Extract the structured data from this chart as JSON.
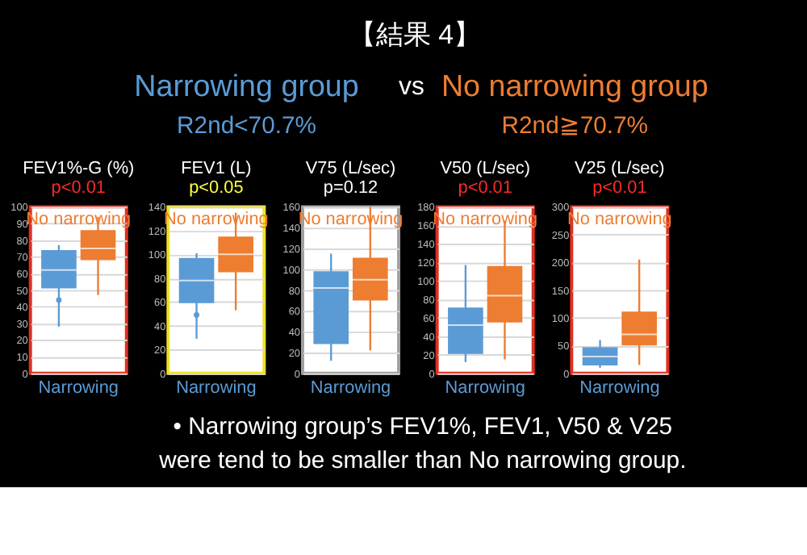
{
  "chart_data": [
    {
      "type": "other",
      "title": "【結果 4】",
      "annotations": [
        "Narrowing group",
        "vs",
        "No narrowing group",
        "R2nd<70.7%",
        "R2nd≧70.7%"
      ],
      "colors": [
        "#5b9bd5",
        "#ffffff",
        "#ed7d31",
        "#5b9bd5",
        "#ed7d31"
      ]
    },
    {
      "type": "box",
      "title": "FEV1%-G (%)",
      "subtitle": "p<0.01",
      "categories": [
        null,
        null
      ],
      "colors": [
        "#5b9bd5",
        "#ed7d31"
      ],
      "annotations": [
        "Narrowing",
        "No narrowing"
      ],
      "ylim": [
        0,
        100
      ],
      "yticks": [
        0,
        10,
        20,
        30,
        40,
        50,
        60,
        70,
        80,
        90,
        100
      ],
      "grid": "y",
      "boxes": [
        {
          "low": 28,
          "q1": 51,
          "median": 62,
          "q3": 74,
          "high": 77,
          "outliers": [
            44
          ]
        },
        {
          "low": 47,
          "q1": 68,
          "median": 75,
          "q3": 86,
          "high": 94
        }
      ]
    },
    {
      "type": "box",
      "title": "FEV1 (L)",
      "subtitle": "p<0.05",
      "categories": [
        null,
        null
      ],
      "colors": [
        "#5b9bd5",
        "#ed7d31"
      ],
      "annotations": [
        "Narrowing",
        "No narrowing"
      ],
      "ylim": [
        0,
        140
      ],
      "yticks": [
        0,
        20,
        40,
        60,
        80,
        100,
        120,
        140
      ],
      "grid": "y",
      "boxes": [
        {
          "low": 29,
          "q1": 59,
          "median": 78,
          "q3": 97,
          "high": 101,
          "outliers": [
            49
          ]
        },
        {
          "low": 53,
          "q1": 85,
          "median": 100,
          "q3": 115,
          "high": 135
        }
      ]
    },
    {
      "type": "box",
      "title": "V75 (L/sec)",
      "subtitle": "p=0.12",
      "categories": [
        null,
        null
      ],
      "colors": [
        "#5b9bd5",
        "#ed7d31"
      ],
      "annotations": [
        "Narrowing",
        "No narrowing"
      ],
      "ylim": [
        0,
        160
      ],
      "yticks": [
        0,
        20,
        40,
        60,
        80,
        100,
        120,
        140,
        160
      ],
      "grid": "y",
      "boxes": [
        {
          "low": 12,
          "q1": 28,
          "median": 82,
          "q3": 98,
          "high": 115
        },
        {
          "low": 22,
          "q1": 70,
          "median": 90,
          "q3": 111,
          "high": 160
        }
      ]
    },
    {
      "type": "box",
      "title": "V50 (L/sec)",
      "subtitle": "p<0.01",
      "categories": [
        null,
        null
      ],
      "colors": [
        "#5b9bd5",
        "#ed7d31"
      ],
      "annotations": [
        "Narrowing",
        "No narrowing"
      ],
      "ylim": [
        0,
        180
      ],
      "yticks": [
        0,
        20,
        40,
        60,
        80,
        100,
        120,
        140,
        160,
        180
      ],
      "grid": "y",
      "boxes": [
        {
          "low": 12,
          "q1": 21,
          "median": 52,
          "q3": 71,
          "high": 117
        },
        {
          "low": 15,
          "q1": 55,
          "median": 84,
          "q3": 116,
          "high": 165
        }
      ]
    },
    {
      "type": "box",
      "title": "V25 (L/sec)",
      "subtitle": "p<0.01",
      "categories": [
        null,
        null
      ],
      "colors": [
        "#5b9bd5",
        "#ed7d31"
      ],
      "annotations": [
        "Narrowing",
        "No narrowing"
      ],
      "ylim": [
        0,
        300
      ],
      "yticks": [
        0,
        50,
        100,
        150,
        200,
        250,
        300
      ],
      "grid": "y",
      "boxes": [
        {
          "low": 10,
          "q1": 14,
          "median": 30,
          "q3": 47,
          "high": 60
        },
        {
          "low": 15,
          "q1": 50,
          "median": 70,
          "q3": 111,
          "high": 205
        }
      ]
    },
    {
      "type": "other",
      "annotations": [
        "• Narrowing group’s FEV1%, FEV1, V50 & V25",
        "were tend to be smaller than No narrowing group."
      ]
    }
  ]
}
